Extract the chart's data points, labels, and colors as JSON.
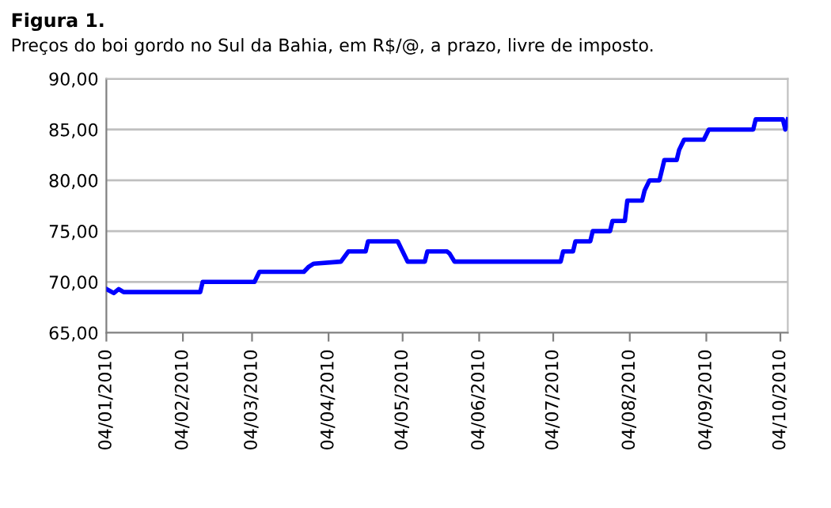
{
  "chart_data": {
    "type": "line",
    "title": "Figura 1.",
    "subtitle": "Preços do boi gordo no Sul da Bahia, em R$/@, a prazo, livre de imposto.",
    "x": [
      "2010-01-04",
      "2010-01-07",
      "2010-01-09",
      "2010-01-11",
      "2010-02-11",
      "2010-02-12",
      "2010-03-05",
      "2010-03-07",
      "2010-03-25",
      "2010-03-27",
      "2010-03-29",
      "2010-04-09",
      "2010-04-12",
      "2010-04-19",
      "2010-04-20",
      "2010-05-02",
      "2010-05-04",
      "2010-05-06",
      "2010-05-13",
      "2010-05-14",
      "2010-05-22",
      "2010-05-23",
      "2010-05-25",
      "2010-07-07",
      "2010-07-08",
      "2010-07-12",
      "2010-07-13",
      "2010-07-19",
      "2010-07-20",
      "2010-07-27",
      "2010-07-28",
      "2010-08-02",
      "2010-08-03",
      "2010-08-09",
      "2010-08-10",
      "2010-08-12",
      "2010-08-16",
      "2010-08-17",
      "2010-08-18",
      "2010-08-23",
      "2010-08-24",
      "2010-08-26",
      "2010-09-03",
      "2010-09-05",
      "2010-09-23",
      "2010-09-24",
      "2010-10-05",
      "2010-10-06",
      "2010-10-07"
    ],
    "series": [
      {
        "color": "#0000ff",
        "values": [
          69.3,
          68.9,
          69.3,
          69.0,
          69.0,
          70.0,
          70.0,
          71.0,
          71.0,
          71.5,
          71.8,
          72.0,
          73.0,
          73.0,
          74.0,
          74.0,
          73.0,
          72.0,
          72.0,
          73.0,
          73.0,
          72.8,
          72.0,
          72.0,
          73.0,
          73.0,
          74.0,
          74.0,
          75.0,
          75.0,
          76.0,
          76.0,
          78.0,
          78.0,
          79.0,
          80.0,
          80.0,
          81.0,
          82.0,
          82.0,
          83.0,
          84.0,
          84.0,
          85.0,
          85.0,
          86.0,
          86.0,
          85.0,
          86.0
        ]
      }
    ],
    "xlim": [
      "2010-01-04",
      "2010-10-07"
    ],
    "xticks": [
      {
        "value": "2010-01-04",
        "label": "04/01/2010"
      },
      {
        "value": "2010-02-04",
        "label": "04/02/2010"
      },
      {
        "value": "2010-03-04",
        "label": "04/03/2010"
      },
      {
        "value": "2010-04-04",
        "label": "04/04/2010"
      },
      {
        "value": "2010-05-04",
        "label": "04/05/2010"
      },
      {
        "value": "2010-06-04",
        "label": "04/06/2010"
      },
      {
        "value": "2010-07-04",
        "label": "04/07/2010"
      },
      {
        "value": "2010-08-04",
        "label": "04/08/2010"
      },
      {
        "value": "2010-09-04",
        "label": "04/09/2010"
      },
      {
        "value": "2010-10-04",
        "label": "04/10/2010"
      }
    ],
    "ylim": [
      65,
      90
    ],
    "yticks": [
      {
        "value": 65,
        "label": "65,00"
      },
      {
        "value": 70,
        "label": "70,00"
      },
      {
        "value": 75,
        "label": "75,00"
      },
      {
        "value": 80,
        "label": "80,00"
      },
      {
        "value": 85,
        "label": "85,00"
      },
      {
        "value": 90,
        "label": "90,00"
      }
    ],
    "grid": "y",
    "marker": "none",
    "line_style": "solid"
  }
}
